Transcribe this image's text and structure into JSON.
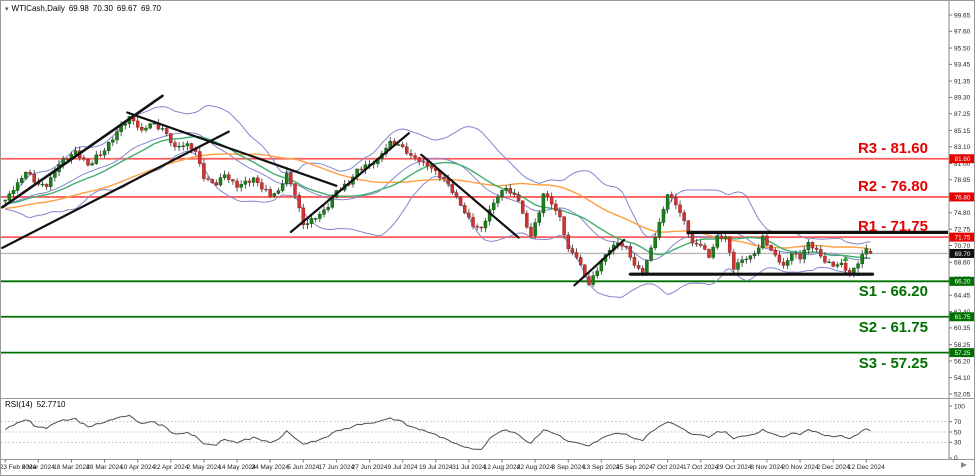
{
  "window": {
    "symbol": "WTICash,Daily",
    "ohlc": {
      "open": "69.98",
      "high": "70.30",
      "low": "69.67",
      "close": "69.70"
    }
  },
  "colors": {
    "background": "#ffffff",
    "candle_up": "#1e7d1e",
    "candle_up_border": "#0c570c",
    "candle_down": "#cd3434",
    "candle_down_border": "#992020",
    "wick": "#333333",
    "bollinger": "#8585cc",
    "ma_fast": "#3fae6e",
    "ma_slow": "#ff9f40",
    "resistance_line": "#ff5c5c",
    "resistance_text": "#e60000",
    "support_line": "#007000",
    "support_text": "#007000",
    "price_line": "#b8b8b8",
    "price_box": "#111111",
    "trendline": "#111111",
    "axis_text": "#222222",
    "rsi_line": "#4d4d4d",
    "rsi_level_dash": "#bbbbbb",
    "frame": "#9a9a9a"
  },
  "chart_data": {
    "type": "candlestick",
    "symbol": "WTICash",
    "timeframe": "Daily",
    "num_candles": 210,
    "candles_per_date_tick": 8,
    "price_axis": {
      "min": 52.05,
      "max": 99.65,
      "tick_labels": [
        "99.65",
        "97.60",
        "95.50",
        "93.45",
        "91.35",
        "89.30",
        "87.25",
        "85.15",
        "83.10",
        "81.00",
        "78.95",
        "76.90",
        "74.80",
        "72.75",
        "70.70",
        "68.60",
        "66.55",
        "64.45",
        "62.40",
        "60.35",
        "58.25",
        "56.20",
        "54.10",
        "52.05"
      ]
    },
    "date_ticks": [
      "23 Feb 2024",
      "6 Mar 2024",
      "18 Mar 2024",
      "28 Mar 2024",
      "10 Apr 2024",
      "22 Apr 2024",
      "2 May 2024",
      "14 May 2024",
      "24 May 2024",
      "5 Jun 2024",
      "17 Jun 2024",
      "27 Jun 2024",
      "9 Jul 2024",
      "19 Jul 2024",
      "31 Jul 2024",
      "12 Aug 2024",
      "22 Aug 2024",
      "3 Sep 2024",
      "13 Sep 2024",
      "25 Sep 2024",
      "7 Oct 2024",
      "17 Oct 2024",
      "29 Oct 2024",
      "8 Nov 2024",
      "20 Nov 2024",
      "2 Dec 2024",
      "12 Dec 2024"
    ],
    "anchors": [
      [
        0,
        76.4
      ],
      [
        3,
        78.6
      ],
      [
        5,
        79.9
      ],
      [
        8,
        78.4
      ],
      [
        10,
        78.1
      ],
      [
        13,
        80.9
      ],
      [
        17,
        82.6
      ],
      [
        20,
        80.8
      ],
      [
        24,
        82.6
      ],
      [
        27,
        85.0
      ],
      [
        30,
        86.9
      ],
      [
        33,
        85.2
      ],
      [
        35,
        86.0
      ],
      [
        38,
        85.4
      ],
      [
        41,
        83.1
      ],
      [
        44,
        83.5
      ],
      [
        46,
        82.5
      ],
      [
        48,
        79.1
      ],
      [
        51,
        78.3
      ],
      [
        53,
        79.6
      ],
      [
        56,
        78.0
      ],
      [
        60,
        79.2
      ],
      [
        64,
        76.9
      ],
      [
        66,
        77.6
      ],
      [
        68,
        79.8
      ],
      [
        70,
        77.0
      ],
      [
        72,
        73.3
      ],
      [
        75,
        74.1
      ],
      [
        78,
        75.5
      ],
      [
        80,
        77.6
      ],
      [
        83,
        78.4
      ],
      [
        85,
        80.3
      ],
      [
        88,
        80.9
      ],
      [
        90,
        81.6
      ],
      [
        93,
        83.8
      ],
      [
        96,
        83.1
      ],
      [
        98,
        82.0
      ],
      [
        101,
        81.2
      ],
      [
        104,
        80.1
      ],
      [
        107,
        78.4
      ],
      [
        109,
        76.8
      ],
      [
        111,
        74.8
      ],
      [
        113,
        73.1
      ],
      [
        115,
        72.9
      ],
      [
        117,
        75.2
      ],
      [
        119,
        76.8
      ],
      [
        121,
        77.9
      ],
      [
        124,
        76.3
      ],
      [
        126,
        73.0
      ],
      [
        127,
        71.9
      ],
      [
        129,
        74.8
      ],
      [
        130,
        77.2
      ],
      [
        132,
        75.9
      ],
      [
        134,
        74.3
      ],
      [
        136,
        70.3
      ],
      [
        138,
        69.2
      ],
      [
        140,
        66.8
      ],
      [
        141,
        65.8
      ],
      [
        143,
        67.5
      ],
      [
        144,
        68.7
      ],
      [
        146,
        70.1
      ],
      [
        148,
        71.0
      ],
      [
        150,
        70.6
      ],
      [
        152,
        68.2
      ],
      [
        154,
        67.0
      ],
      [
        156,
        70.4
      ],
      [
        158,
        73.6
      ],
      [
        160,
        77.1
      ],
      [
        162,
        75.8
      ],
      [
        164,
        73.8
      ],
      [
        166,
        71.0
      ],
      [
        168,
        70.7
      ],
      [
        170,
        69.2
      ],
      [
        172,
        71.9
      ],
      [
        174,
        71.8
      ],
      [
        176,
        67.7
      ],
      [
        178,
        68.9
      ],
      [
        180,
        69.4
      ],
      [
        182,
        70.4
      ],
      [
        183,
        71.9
      ],
      [
        185,
        70.1
      ],
      [
        188,
        68.2
      ],
      [
        190,
        69.7
      ],
      [
        192,
        69.0
      ],
      [
        194,
        71.1
      ],
      [
        196,
        70.2
      ],
      [
        198,
        68.6
      ],
      [
        200,
        68.1
      ],
      [
        202,
        68.5
      ],
      [
        204,
        67.2
      ],
      [
        206,
        68.4
      ],
      [
        208,
        70.3
      ],
      [
        209,
        69.7
      ]
    ],
    "last_candle": {
      "open": 69.98,
      "high": 70.3,
      "low": 69.67,
      "close": 69.7
    },
    "current_price": {
      "value": 69.7,
      "axis_label": "69.70"
    },
    "levels": [
      {
        "name": "R3",
        "price": 81.6,
        "label": "R3 - 81.60",
        "axis_label": "81.60",
        "kind": "resistance",
        "label_side": "above"
      },
      {
        "name": "R2",
        "price": 76.8,
        "label": "R2 - 76.80",
        "axis_label": "76.80",
        "kind": "resistance",
        "label_side": "above"
      },
      {
        "name": "R1",
        "price": 71.75,
        "label": "R1 - 71.75",
        "axis_label": "71.75",
        "kind": "resistance",
        "label_side": "above"
      },
      {
        "name": "S1",
        "price": 66.2,
        "label": "S1 - 66.20",
        "axis_label": "66.20",
        "kind": "support",
        "label_side": "below"
      },
      {
        "name": "S2",
        "price": 61.75,
        "label": "S2 - 61.75",
        "axis_label": "61.75",
        "kind": "support",
        "label_side": "below"
      },
      {
        "name": "S3",
        "price": 57.25,
        "label": "S3 - 57.25",
        "axis_label": "57.25",
        "kind": "support",
        "label_side": "below"
      }
    ],
    "trendlines": [
      {
        "i1": -0.7,
        "p1": 75.5,
        "i2": 38,
        "p2": 89.5,
        "w": 2.6
      },
      {
        "i1": -0.7,
        "p1": 70.4,
        "i2": 54,
        "p2": 85.0,
        "w": 2.2
      },
      {
        "i1": 29.5,
        "p1": 87.4,
        "i2": 80,
        "p2": 78.2,
        "w": 2.2
      },
      {
        "i1": 69,
        "p1": 72.4,
        "i2": 97.5,
        "p2": 84.8,
        "w": 2.2
      },
      {
        "i1": 100.5,
        "p1": 82.1,
        "i2": 124,
        "p2": 71.7,
        "w": 2.2
      },
      {
        "i1": 137.5,
        "p1": 65.7,
        "i2": 149.5,
        "p2": 71.4,
        "w": 2.2
      },
      {
        "i1": 165,
        "p1": 72.35,
        "i2": 228,
        "p2": 72.35,
        "w": 3.2
      },
      {
        "i1": 151,
        "p1": 67.1,
        "i2": 209.5,
        "p2": 67.1,
        "w": 3.2
      }
    ],
    "marker": {
      "index": 203,
      "price": 69.0,
      "type": "arrow-up",
      "color": "#22aa22"
    },
    "indicators": {
      "bollinger": {
        "period": 20,
        "deviation": 2
      },
      "ma": [
        {
          "name": "ma-slow",
          "period": 50
        },
        {
          "name": "ma-fast",
          "period": 25
        }
      ],
      "rsi": {
        "label": "RSI(14)",
        "period": 14,
        "value_label": "52.7710",
        "range": [
          0,
          100
        ],
        "levels": [
          30,
          50,
          70
        ],
        "axis_labels": [
          "100",
          "70",
          "50",
          "30",
          "0"
        ]
      }
    }
  }
}
